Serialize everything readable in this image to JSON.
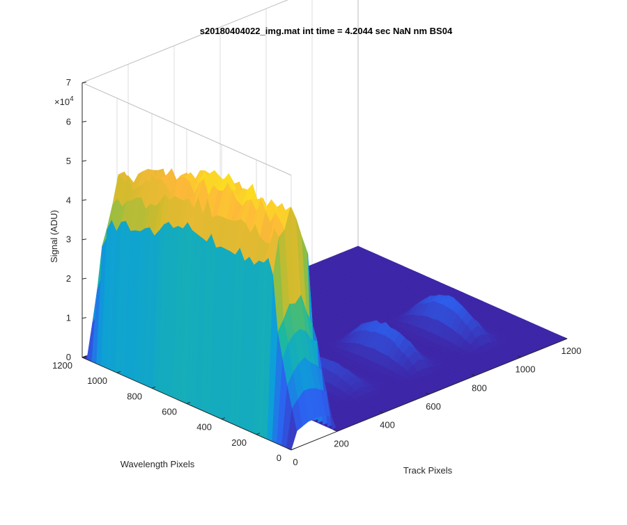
{
  "chart_data": {
    "type": "surface",
    "title": "s20180404022_img.mat int time = 4.2044 sec  NaN nm BS04",
    "xlabel": "Track Pixels",
    "ylabel": "Wavelength Pixels",
    "zlabel": "Signal (ADU)",
    "z_exponent_label": "×10",
    "z_exponent_power": "4",
    "x_ticks": [
      "0",
      "200",
      "400",
      "600",
      "800",
      "1000",
      "1200"
    ],
    "y_ticks": [
      "0",
      "200",
      "400",
      "600",
      "800",
      "1000",
      "1200"
    ],
    "z_ticks": [
      "0",
      "1",
      "2",
      "3",
      "4",
      "5",
      "6",
      "7"
    ],
    "xlim": [
      0,
      1200
    ],
    "ylim": [
      0,
      1200
    ],
    "zlim": [
      0,
      70000
    ],
    "grid": true,
    "colormap": [
      "#3e26a8",
      "#2c62f0",
      "#0d9fd8",
      "#1cb8a2",
      "#70bf51",
      "#cfbb2d",
      "#fdb939",
      "#f9fb0e"
    ],
    "series": [
      {
        "fiber_center": 100,
        "peak_signal": 59000,
        "half_width": 90,
        "flat_top": true
      },
      {
        "fiber_center": 450,
        "peak_signal": 5000,
        "half_width": 70,
        "flat_top": false
      },
      {
        "fiber_center": 700,
        "peak_signal": 8500,
        "half_width": 70,
        "flat_top": false
      },
      {
        "fiber_center": 970,
        "peak_signal": 9000,
        "half_width": 70,
        "flat_top": false
      }
    ]
  }
}
